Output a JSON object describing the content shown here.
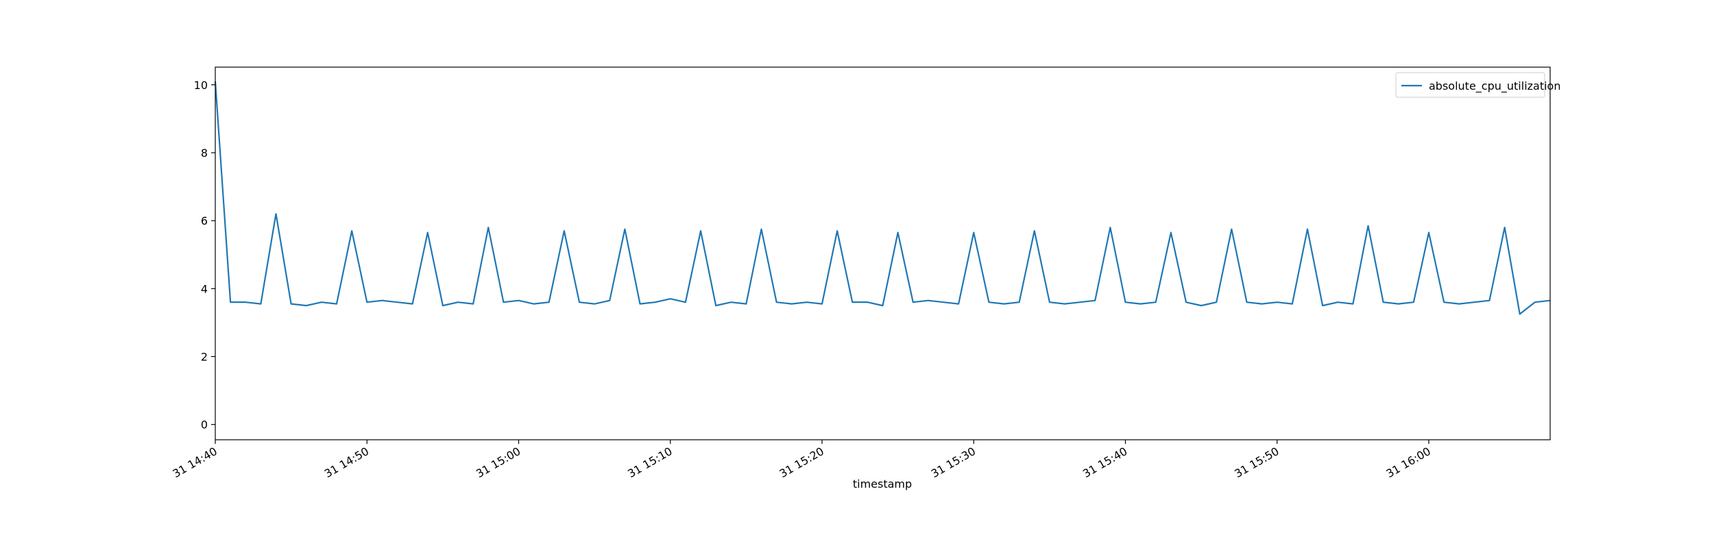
{
  "chart_data": {
    "type": "line",
    "xlabel": "timestamp",
    "x": [
      "31 14:40",
      "31 14:41",
      "31 14:42",
      "31 14:43",
      "31 14:44",
      "31 14:45",
      "31 14:46",
      "31 14:47",
      "31 14:48",
      "31 14:49",
      "31 14:50",
      "31 14:51",
      "31 14:52",
      "31 14:53",
      "31 14:54",
      "31 14:55",
      "31 14:56",
      "31 14:57",
      "31 14:58",
      "31 14:59",
      "31 15:00",
      "31 15:01",
      "31 15:02",
      "31 15:03",
      "31 15:04",
      "31 15:05",
      "31 15:06",
      "31 15:07",
      "31 15:08",
      "31 15:09",
      "31 15:10",
      "31 15:11",
      "31 15:12",
      "31 15:13",
      "31 15:14",
      "31 15:15",
      "31 15:16",
      "31 15:17",
      "31 15:18",
      "31 15:19",
      "31 15:20",
      "31 15:21",
      "31 15:22",
      "31 15:23",
      "31 15:24",
      "31 15:25",
      "31 15:26",
      "31 15:27",
      "31 15:28",
      "31 15:29",
      "31 15:30",
      "31 15:31",
      "31 15:32",
      "31 15:33",
      "31 15:34",
      "31 15:35",
      "31 15:36",
      "31 15:37",
      "31 15:38",
      "31 15:39",
      "31 15:40",
      "31 15:41",
      "31 15:42",
      "31 15:43",
      "31 15:44",
      "31 15:45",
      "31 15:46",
      "31 15:47",
      "31 15:48",
      "31 15:49",
      "31 15:50",
      "31 15:51",
      "31 15:52",
      "31 15:53",
      "31 15:54",
      "31 15:55",
      "31 15:56",
      "31 15:57",
      "31 15:58",
      "31 15:59",
      "31 16:00",
      "31 16:01",
      "31 16:02",
      "31 16:03",
      "31 16:04",
      "31 16:05",
      "31 16:06",
      "31 16:07",
      "31 16:08"
    ],
    "series": [
      {
        "name": "absolute_cpu_utilization",
        "color": "#1f77b4",
        "values": [
          10.1,
          3.6,
          3.6,
          3.55,
          6.2,
          3.55,
          3.5,
          3.6,
          3.55,
          5.7,
          3.6,
          3.65,
          3.6,
          3.55,
          5.65,
          3.5,
          3.6,
          3.55,
          5.8,
          3.6,
          3.65,
          3.55,
          3.6,
          5.7,
          3.6,
          3.55,
          3.65,
          5.75,
          3.55,
          3.6,
          3.7,
          3.6,
          5.7,
          3.5,
          3.6,
          3.55,
          5.75,
          3.6,
          3.55,
          3.6,
          3.55,
          5.7,
          3.6,
          3.6,
          3.5,
          5.65,
          3.6,
          3.65,
          3.6,
          3.55,
          5.65,
          3.6,
          3.55,
          3.6,
          5.7,
          3.6,
          3.55,
          3.6,
          3.65,
          5.8,
          3.6,
          3.55,
          3.6,
          5.65,
          3.6,
          3.5,
          3.6,
          5.75,
          3.6,
          3.55,
          3.6,
          3.55,
          5.75,
          3.5,
          3.6,
          3.55,
          5.85,
          3.6,
          3.55,
          3.6,
          5.65,
          3.6,
          3.55,
          3.6,
          3.65,
          5.8,
          3.25,
          3.6,
          3.65
        ]
      }
    ],
    "xticks": [
      "31 14:40",
      "31 14:50",
      "31 15:00",
      "31 15:10",
      "31 15:20",
      "31 15:30",
      "31 15:40",
      "31 15:50",
      "31 16:00"
    ],
    "ylim": [
      -0.45,
      10.52
    ],
    "yticks": [
      0,
      2,
      4,
      6,
      8,
      10
    ],
    "legend": "upper right"
  }
}
